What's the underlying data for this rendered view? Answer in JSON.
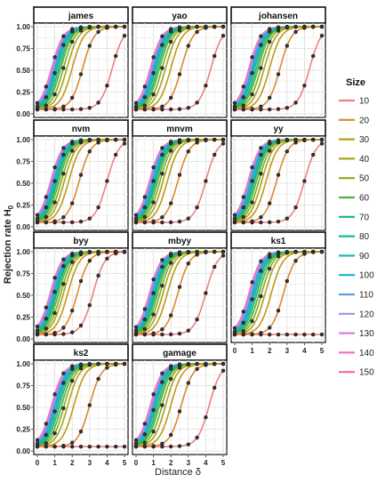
{
  "chart_data": {
    "type": "line",
    "layout": "facet-grid",
    "xlabel": "Distance δ",
    "ylabel_main": "Rejection rate H",
    "ylabel_sub": "0",
    "x_ticks": [
      "0",
      "1",
      "2",
      "3",
      "4",
      "5"
    ],
    "y_ticks": [
      "0.00",
      "0.25",
      "0.50",
      "0.75",
      "1.00"
    ],
    "xlim": [
      0,
      5
    ],
    "ylim": [
      0,
      1
    ],
    "grid": true,
    "legend": {
      "title": "Size",
      "position": "right",
      "entries": [
        {
          "label": "10",
          "color": "#f07f7f"
        },
        {
          "label": "20",
          "color": "#d98a2e"
        },
        {
          "label": "30",
          "color": "#c29a12"
        },
        {
          "label": "40",
          "color": "#a7a51c"
        },
        {
          "label": "50",
          "color": "#86ab1e"
        },
        {
          "label": "60",
          "color": "#4fb33e"
        },
        {
          "label": "70",
          "color": "#1fb46c"
        },
        {
          "label": "80",
          "color": "#1db597"
        },
        {
          "label": "90",
          "color": "#1fb7be"
        },
        {
          "label": "100",
          "color": "#1eaee0"
        },
        {
          "label": "110",
          "color": "#5e9fe8"
        },
        {
          "label": "120",
          "color": "#a98de8"
        },
        {
          "label": "130",
          "color": "#d97fe0"
        },
        {
          "label": "140",
          "color": "#ee72c8"
        },
        {
          "label": "150",
          "color": "#f46aa2"
        }
      ]
    },
    "x": [
      0,
      0.5,
      1,
      1.5,
      2,
      2.5,
      3,
      3.5,
      4,
      4.5,
      5
    ],
    "facets": [
      {
        "title": "james",
        "midpoints": [
          4.3,
          2.6,
          2.0,
          1.7,
          1.5,
          1.35,
          1.25,
          1.15,
          1.08,
          1.02,
          0.97,
          0.93,
          0.89,
          0.85,
          0.82
        ]
      },
      {
        "title": "yao",
        "midpoints": [
          4.3,
          2.6,
          2.0,
          1.7,
          1.5,
          1.35,
          1.25,
          1.15,
          1.08,
          1.02,
          0.97,
          0.93,
          0.89,
          0.85,
          0.82
        ]
      },
      {
        "title": "johansen",
        "midpoints": [
          4.3,
          2.6,
          2.0,
          1.7,
          1.5,
          1.35,
          1.25,
          1.15,
          1.08,
          1.02,
          0.97,
          0.93,
          0.89,
          0.85,
          0.82
        ]
      },
      {
        "title": "nvm",
        "midpoints": [
          4.0,
          2.4,
          1.8,
          1.55,
          1.38,
          1.25,
          1.15,
          1.07,
          1.0,
          0.95,
          0.9,
          0.86,
          0.83,
          0.8,
          0.77
        ]
      },
      {
        "title": "mnvm",
        "midpoints": [
          4.0,
          2.4,
          1.8,
          1.55,
          1.38,
          1.25,
          1.15,
          1.07,
          1.0,
          0.95,
          0.9,
          0.86,
          0.83,
          0.8,
          0.77
        ]
      },
      {
        "title": "yy",
        "midpoints": [
          4.0,
          2.4,
          1.8,
          1.55,
          1.38,
          1.25,
          1.15,
          1.07,
          1.0,
          0.95,
          0.9,
          0.86,
          0.83,
          0.8,
          0.77
        ]
      },
      {
        "title": "byy",
        "midpoints": [
          3.2,
          2.3,
          1.75,
          1.5,
          1.35,
          1.22,
          1.12,
          1.05,
          0.98,
          0.93,
          0.88,
          0.84,
          0.8,
          0.77,
          0.74
        ]
      },
      {
        "title": "mbyy",
        "midpoints": [
          4.0,
          2.4,
          1.8,
          1.55,
          1.38,
          1.25,
          1.15,
          1.07,
          1.0,
          0.95,
          0.9,
          0.86,
          0.83,
          0.8,
          0.77
        ]
      },
      {
        "title": "ks1",
        "midpoints": [
          7.5,
          2.8,
          2.1,
          1.75,
          1.55,
          1.4,
          1.28,
          1.18,
          1.1,
          1.03,
          0.98,
          0.93,
          0.89,
          0.85,
          0.82
        ]
      },
      {
        "title": "ks2",
        "midpoints": [
          8.0,
          3.0,
          2.1,
          1.75,
          1.55,
          1.4,
          1.28,
          1.18,
          1.1,
          1.03,
          0.98,
          0.93,
          0.89,
          0.85,
          0.82
        ]
      },
      {
        "title": "gamage",
        "midpoints": [
          4.2,
          2.6,
          2.0,
          1.7,
          1.5,
          1.35,
          1.25,
          1.15,
          1.08,
          1.02,
          0.97,
          0.93,
          0.89,
          0.85,
          0.82
        ]
      }
    ]
  }
}
